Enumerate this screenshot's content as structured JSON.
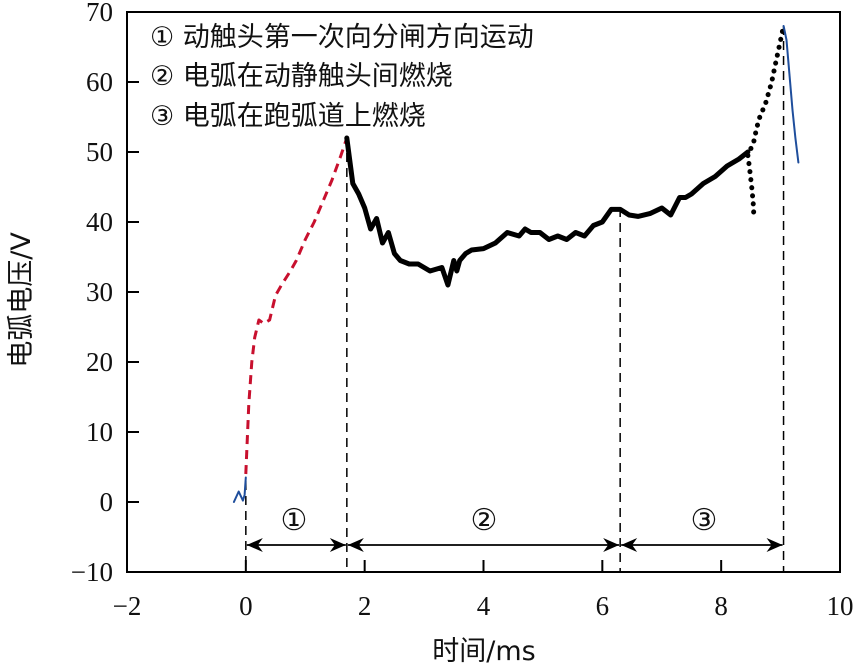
{
  "chart_data": {
    "type": "line",
    "title": "",
    "xlabel": "时间/ms",
    "ylabel": "电弧电压/V",
    "xlim": [
      -2,
      10
    ],
    "ylim": [
      -10,
      70
    ],
    "x_ticks": [
      -2,
      0,
      2,
      4,
      6,
      8,
      10
    ],
    "y_ticks": [
      -10,
      0,
      10,
      20,
      30,
      40,
      50,
      60,
      70
    ],
    "grid": false,
    "legend": {
      "position": "upper-left (inside)",
      "entries": [
        "① 动触头第一次向分闸方向运动",
        "② 电弧在动静触头间燃烧",
        "③ 电弧在跑弧道上燃烧"
      ]
    },
    "phase_boundaries_ms": [
      0,
      1.7,
      6.3,
      9.05
    ],
    "phases": [
      {
        "label": "①",
        "start": 0,
        "end": 1.7
      },
      {
        "label": "②",
        "start": 1.7,
        "end": 6.3
      },
      {
        "label": "③",
        "start": 6.3,
        "end": 9.05
      }
    ],
    "series": [
      {
        "name": "pre-arc (blue)",
        "color": "#1f4e9c",
        "style": "solid",
        "x": [
          -0.2,
          -0.12,
          -0.05,
          -0.02,
          0.0
        ],
        "y": [
          0.0,
          1.5,
          0.2,
          1.0,
          3.5
        ]
      },
      {
        "name": "phase 1 (red dashed)",
        "color": "#c8102e",
        "style": "dashed",
        "x": [
          0.0,
          0.05,
          0.1,
          0.15,
          0.22,
          0.3,
          0.4,
          0.5,
          0.6,
          0.75,
          0.85,
          1.0,
          1.15,
          1.3,
          1.45,
          1.6,
          1.7
        ],
        "y": [
          4.0,
          14.0,
          20.0,
          23.5,
          26.0,
          25.5,
          26.0,
          29.5,
          31.0,
          33.0,
          34.5,
          37.5,
          40.0,
          43.0,
          46.0,
          49.5,
          52.0
        ]
      },
      {
        "name": "phases 2-3 (black)",
        "color": "#000000",
        "style": "solid",
        "x": [
          1.7,
          1.8,
          1.9,
          2.0,
          2.1,
          2.2,
          2.3,
          2.4,
          2.5,
          2.6,
          2.75,
          2.9,
          3.1,
          3.3,
          3.4,
          3.5,
          3.55,
          3.6,
          3.7,
          3.8,
          4.0,
          4.2,
          4.4,
          4.6,
          4.7,
          4.8,
          4.95,
          5.1,
          5.25,
          5.4,
          5.55,
          5.7,
          5.85,
          6.0,
          6.15,
          6.3,
          6.45,
          6.6,
          6.8,
          7.0,
          7.15,
          7.3,
          7.4,
          7.5,
          7.7,
          7.9,
          8.1,
          8.3,
          8.45
        ],
        "y": [
          52.0,
          45.5,
          44.0,
          42.0,
          39.0,
          40.5,
          37.0,
          38.5,
          35.5,
          34.5,
          34.0,
          34.0,
          33.0,
          33.5,
          31.0,
          34.5,
          33.0,
          34.5,
          35.5,
          36.0,
          36.2,
          37.0,
          38.5,
          38.0,
          39.0,
          38.5,
          38.5,
          37.5,
          38.0,
          37.5,
          38.5,
          38.0,
          39.5,
          40.0,
          41.8,
          41.8,
          41.0,
          40.8,
          41.2,
          42.0,
          41.0,
          43.5,
          43.5,
          44.0,
          45.5,
          46.5,
          48.0,
          49.0,
          50.0
        ]
      },
      {
        "name": "phase 3 dotted dip",
        "color": "#000000",
        "style": "dotted",
        "x": [
          8.45,
          8.48,
          8.5,
          8.52,
          8.54,
          8.55
        ],
        "y": [
          49.5,
          47.5,
          46.0,
          44.5,
          42.5,
          41.0
        ]
      },
      {
        "name": "phase 3 dotted rise",
        "color": "#000000",
        "style": "dotted",
        "x": [
          8.5,
          8.55,
          8.6,
          8.65,
          8.7,
          8.75,
          8.8,
          8.85,
          8.9,
          8.95,
          9.0,
          9.05
        ],
        "y": [
          50.5,
          51.5,
          53.5,
          55.0,
          56.0,
          57.0,
          58.5,
          60.0,
          62.0,
          64.0,
          66.0,
          68.0
        ]
      },
      {
        "name": "post-arc (blue)",
        "color": "#1f4e9c",
        "style": "solid",
        "x": [
          9.05,
          9.1,
          9.15,
          9.2,
          9.25,
          9.3
        ],
        "y": [
          68.0,
          66.0,
          61.0,
          56.0,
          52.0,
          48.5
        ]
      }
    ]
  },
  "labels": {
    "xlabel": "时间/ms",
    "ylabel": "电弧电压/V",
    "legend_1": "① 动触头第一次向分闸方向运动",
    "legend_2": "② 电弧在动静触头间燃烧",
    "legend_3": "③ 电弧在跑弧道上燃烧",
    "phase_1": "①",
    "phase_2": "②",
    "phase_3": "③"
  }
}
